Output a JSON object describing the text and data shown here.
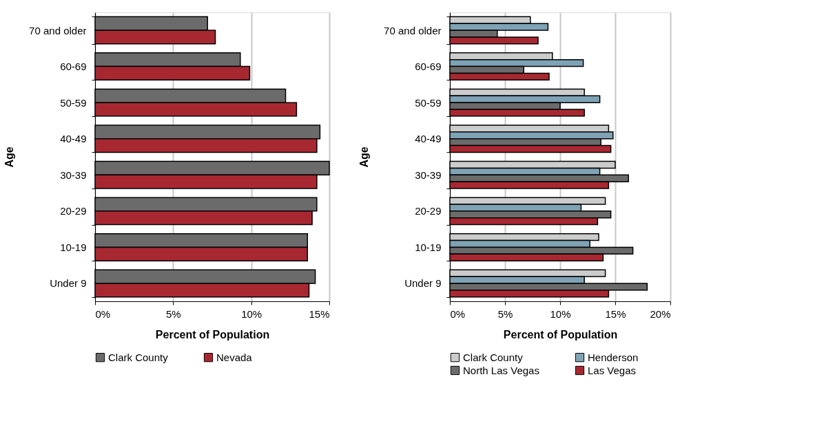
{
  "chart_data": [
    {
      "type": "bar",
      "orientation": "horizontal",
      "xlabel": "Percent of Population",
      "ylabel": "Age",
      "categories": [
        "70 and older",
        "60-69",
        "50-59",
        "40-49",
        "30-39",
        "20-29",
        "10-19",
        "Under 9"
      ],
      "series": [
        {
          "name": "Clark County",
          "color": "#6b6b6b",
          "values": [
            7.2,
            9.3,
            12.2,
            14.4,
            15.0,
            14.2,
            13.6,
            14.1
          ]
        },
        {
          "name": "Nevada",
          "color": "#a82832",
          "values": [
            7.7,
            9.9,
            12.9,
            14.2,
            14.2,
            13.9,
            13.6,
            13.7
          ]
        }
      ],
      "xlim": [
        0,
        15
      ],
      "xticks": [
        {
          "value": 0,
          "label": "0%"
        },
        {
          "value": 5,
          "label": "5%"
        },
        {
          "value": 10,
          "label": "10%"
        },
        {
          "value": 15,
          "label": "15%"
        }
      ],
      "grid": "x",
      "legend": "bottom"
    },
    {
      "type": "bar",
      "orientation": "horizontal",
      "xlabel": "Percent of Population",
      "ylabel": "Age",
      "categories": [
        "70 and older",
        "60-69",
        "50-59",
        "40-49",
        "30-39",
        "20-29",
        "10-19",
        "Under 9"
      ],
      "series": [
        {
          "name": "Clark County",
          "color": "#cccccc",
          "values": [
            7.3,
            9.3,
            12.2,
            14.4,
            15.0,
            14.1,
            13.5,
            14.1
          ]
        },
        {
          "name": "Henderson",
          "color": "#7fa3b5",
          "values": [
            8.9,
            12.1,
            13.6,
            14.8,
            13.6,
            11.9,
            12.7,
            12.2
          ]
        },
        {
          "name": "North Las Vegas",
          "color": "#6b6b6b",
          "values": [
            4.3,
            6.7,
            10.0,
            13.7,
            16.2,
            14.6,
            16.6,
            17.9
          ]
        },
        {
          "name": "Las Vegas",
          "color": "#a82832",
          "values": [
            8.0,
            9.0,
            12.2,
            14.6,
            14.4,
            13.4,
            13.9,
            14.4
          ]
        }
      ],
      "xlim": [
        0,
        20
      ],
      "xticks": [
        {
          "value": 0,
          "label": "0%"
        },
        {
          "value": 5,
          "label": "5%"
        },
        {
          "value": 10,
          "label": "10%"
        },
        {
          "value": 15,
          "label": "15%"
        },
        {
          "value": 20,
          "label": "20%"
        }
      ],
      "grid": "x",
      "legend": "bottom"
    }
  ]
}
